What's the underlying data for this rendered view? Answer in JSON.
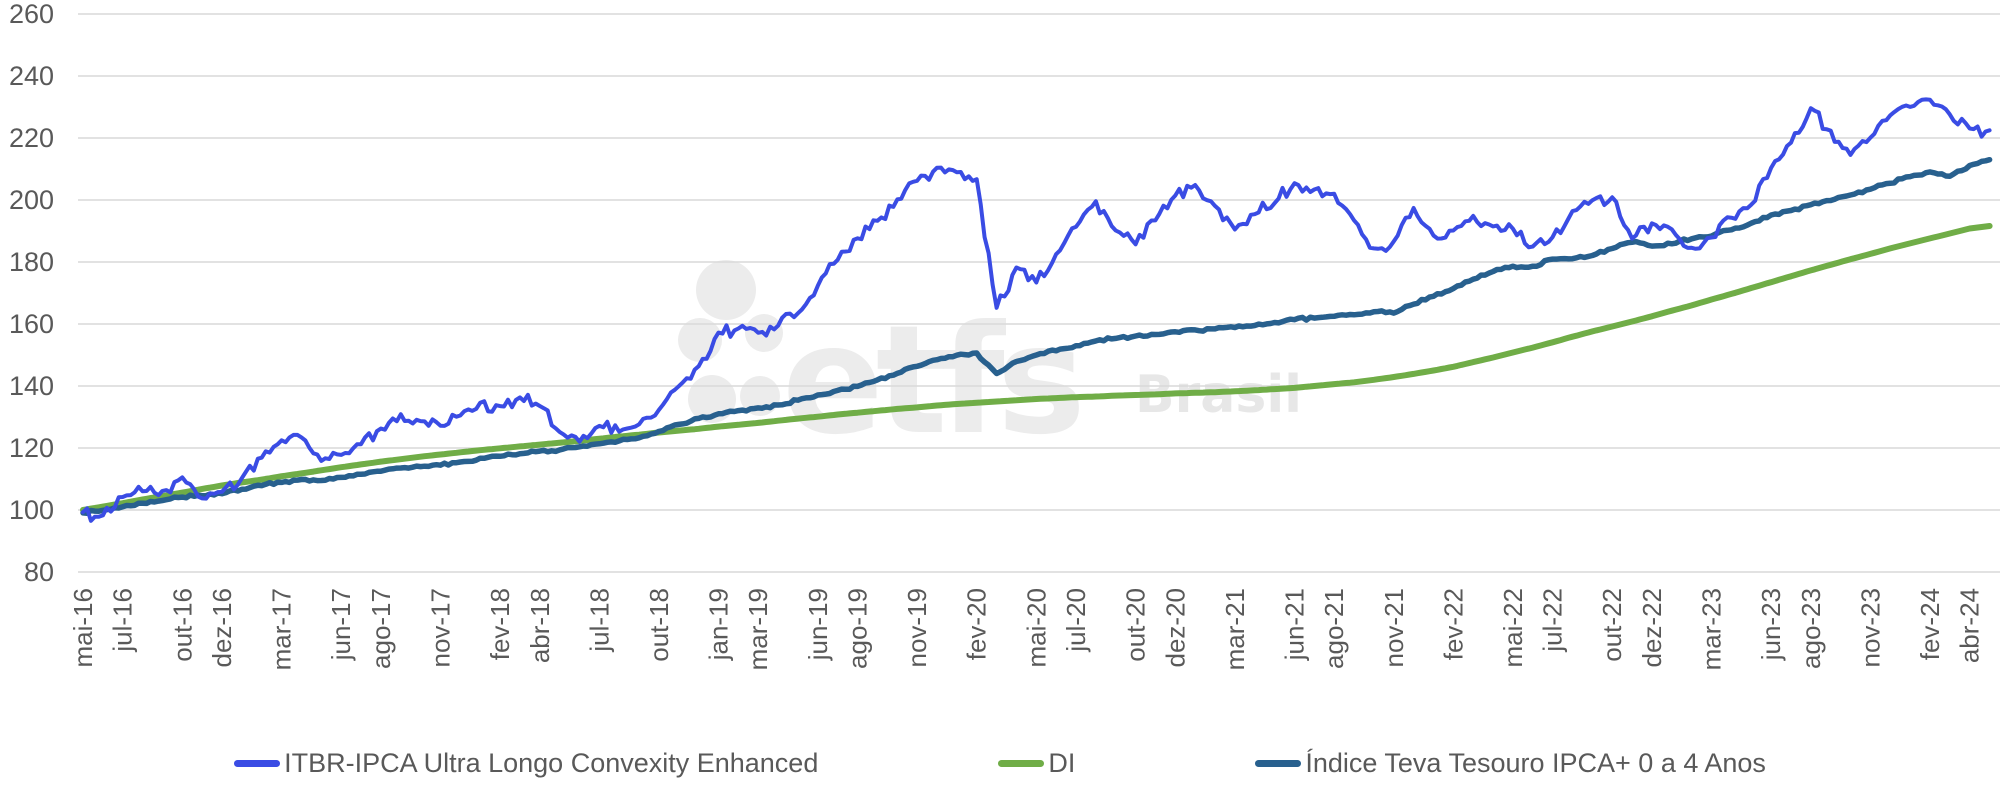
{
  "chart_data": {
    "type": "line",
    "title": "",
    "background": "#FFFFFF",
    "text_color": "#595959",
    "grid": {
      "show_horizontal": true,
      "color": "#D9D9D9"
    },
    "y_axis": {
      "min": 80,
      "max": 260,
      "ticks": [
        260,
        240,
        220,
        200,
        180,
        160,
        140,
        120,
        100,
        80
      ]
    },
    "x_axis": {
      "tick_labels": [
        "mai-16",
        "jul-16",
        "out-16",
        "dez-16",
        "mar-17",
        "jun-17",
        "ago-17",
        "nov-17",
        "fev-18",
        "abr-18",
        "jul-18",
        "out-18",
        "jan-19",
        "mar-19",
        "jun-19",
        "ago-19",
        "nov-19",
        "fev-20",
        "mai-20",
        "jul-20",
        "out-20",
        "dez-20",
        "mar-21",
        "jun-21",
        "ago-21",
        "nov-21",
        "fev-22",
        "mai-22",
        "jul-22",
        "out-22",
        "dez-22",
        "mar-23",
        "jun-23",
        "ago-23",
        "nov-23",
        "fev-24",
        "abr-24"
      ],
      "tick_months": [
        0,
        2,
        5,
        7,
        10,
        13,
        15,
        18,
        21,
        23,
        26,
        29,
        32,
        34,
        37,
        39,
        42,
        45,
        48,
        50,
        53,
        55,
        58,
        61,
        63,
        66,
        69,
        72,
        74,
        77,
        79,
        82,
        85,
        87,
        90,
        93,
        95
      ]
    },
    "months_domain": {
      "start_label": "mai-16",
      "end_label": "abr-24",
      "n_points": 97
    },
    "legend": {
      "position": "bottom"
    },
    "series": [
      {
        "name": "ITBR-IPCA Ultra Longo Convexity Enhanced",
        "color": "#3A4CE4",
        "stroke_width": 4,
        "jitter": 2.0,
        "z": 2,
        "values": [
          99,
          98.5,
          103.5,
          106.5,
          105.5,
          110.5,
          103.5,
          105.5,
          110,
          117,
          122,
          124,
          116,
          118,
          121.5,
          126,
          130.5,
          128.5,
          127.5,
          130.5,
          134,
          133.5,
          136,
          134,
          124.5,
          122.5,
          127.5,
          125.5,
          128,
          132,
          140,
          146.5,
          157,
          158.5,
          157.5,
          160,
          164,
          172,
          181,
          188,
          193,
          199.5,
          206,
          210,
          209,
          207,
          165,
          178,
          174,
          182,
          192,
          199,
          190,
          186,
          194,
          202,
          205.5,
          198,
          191,
          196,
          199,
          205.5,
          203,
          202,
          194,
          184,
          186,
          197,
          188,
          190,
          195,
          192,
          191,
          185,
          188,
          196,
          200,
          201,
          188,
          192,
          190,
          184,
          188,
          194,
          198,
          210,
          219,
          229,
          222,
          214,
          220,
          228,
          230,
          233,
          227,
          223,
          222.5
        ]
      },
      {
        "name": "DI",
        "color": "#70AD47",
        "stroke_width": 6,
        "jitter": 0,
        "z": 0,
        "values": [
          100,
          101.1,
          102.2,
          103.4,
          104.5,
          105.6,
          106.8,
          107.9,
          108.9,
          109.8,
          110.9,
          111.8,
          112.8,
          113.8,
          114.7,
          115.6,
          116.4,
          117.2,
          117.9,
          118.6,
          119.3,
          119.9,
          120.5,
          121.1,
          121.7,
          122.3,
          123,
          123.7,
          124.3,
          125,
          125.6,
          126.2,
          126.9,
          127.5,
          128.1,
          128.8,
          129.5,
          130.1,
          130.8,
          131.4,
          132,
          132.6,
          133.1,
          133.7,
          134.2,
          134.6,
          135,
          135.4,
          135.8,
          136.1,
          136.4,
          136.6,
          136.9,
          137.1,
          137.3,
          137.6,
          137.8,
          138,
          138.3,
          138.6,
          139,
          139.4,
          140,
          140.6,
          141.2,
          142,
          142.9,
          143.9,
          145,
          146.2,
          147.7,
          149.2,
          150.8,
          152.4,
          154.1,
          155.9,
          157.6,
          159.2,
          160.8,
          162.5,
          164.3,
          166,
          167.9,
          169.7,
          171.6,
          173.5,
          175.4,
          177.3,
          179.1,
          180.9,
          182.6,
          184.4,
          186,
          187.6,
          189.2,
          190.8,
          191.6
        ]
      },
      {
        "name": "Índice Teva Tesouro IPCA+ 0 a 4 Anos",
        "color": "#28608E",
        "stroke_width": 5.5,
        "jitter": 0.45,
        "z": 1,
        "values": [
          99,
          100,
          101,
          102.3,
          103.2,
          104.2,
          104.6,
          105.4,
          106.7,
          108,
          109,
          109.8,
          109.5,
          110.5,
          111.5,
          112.6,
          113.6,
          114.1,
          114.6,
          115.5,
          116.6,
          117.2,
          118.1,
          118.9,
          119.3,
          120.5,
          121.5,
          122.3,
          123.2,
          125.5,
          127.5,
          129.5,
          131,
          132,
          132.8,
          134,
          135.5,
          137,
          138.5,
          140,
          142,
          144,
          146.5,
          148.5,
          150,
          150.5,
          144,
          148,
          150,
          151.5,
          153,
          154.5,
          155.5,
          156,
          156.5,
          157.5,
          158,
          158.5,
          159,
          159.5,
          160.5,
          161.5,
          162,
          162.5,
          163,
          164,
          163.5,
          166.5,
          169,
          171.5,
          174.5,
          177,
          178.5,
          178.5,
          181,
          181,
          182,
          184.5,
          186.5,
          185,
          186,
          187.5,
          188.5,
          190.5,
          192.5,
          195,
          196.5,
          198.5,
          200,
          201.5,
          203.5,
          205.5,
          207.5,
          209,
          207.5,
          211,
          213
        ]
      }
    ]
  },
  "watermark": {
    "logo_text": "etfs",
    "suffix_text": "Brasil",
    "color": "#ECECEC",
    "suffix_color": "#E7E7E7"
  }
}
